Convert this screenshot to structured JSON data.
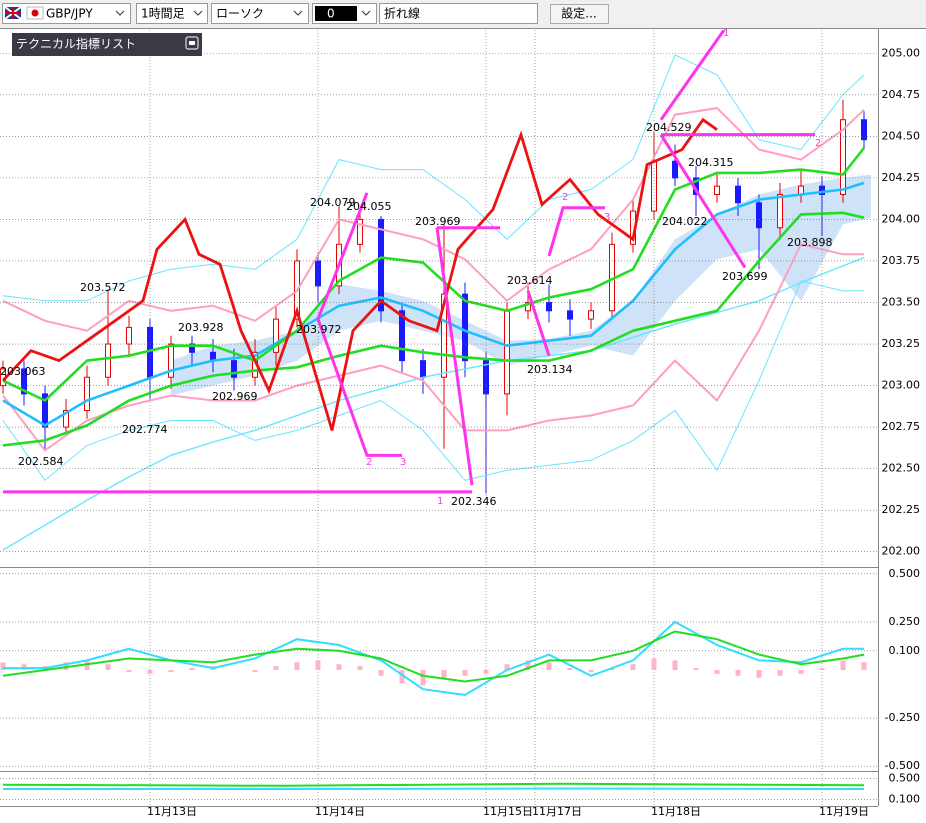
{
  "toolbar": {
    "pair": "GBP/JPY",
    "timeframe": "1時間足",
    "chart_type": "ローソク",
    "box": "0",
    "line_type": "折れ線",
    "settings": "設定..."
  },
  "indicator_list": {
    "title": "テクニカル指標リスト"
  },
  "chart_data": [
    {
      "type": "candlestick",
      "xlim": [
        -0.43,
        125
      ],
      "ylim": [
        201.92,
        205.14
      ],
      "xticks": [
        {
          "value": 21,
          "label": "11月13日"
        },
        {
          "value": 45,
          "label": "11月14日"
        },
        {
          "value": 69,
          "label": "11月15日"
        },
        {
          "value": 76,
          "label": "11月17日"
        },
        {
          "value": 93,
          "label": "11月18日"
        },
        {
          "value": 117,
          "label": "11月19日"
        }
      ],
      "yticks": [
        {
          "value": 205,
          "label": "205.00"
        },
        {
          "value": 204.75,
          "label": "204.75"
        },
        {
          "value": 204.5,
          "label": "204.50"
        },
        {
          "value": 204.25,
          "label": "204.25"
        },
        {
          "value": 204,
          "label": "204.00"
        },
        {
          "value": 203.75,
          "label": "203.75"
        },
        {
          "value": 203.5,
          "label": "203.50"
        },
        {
          "value": 203.25,
          "label": "203.25"
        },
        {
          "value": 203,
          "label": "203.00"
        },
        {
          "value": 202.75,
          "label": "202.75"
        },
        {
          "value": 202.5,
          "label": "202.50"
        },
        {
          "value": 202.25,
          "label": "202.25"
        },
        {
          "value": 202,
          "label": "202.00"
        }
      ],
      "grid": true,
      "up_color": "#e60000",
      "down_color": "#1a1aff",
      "cloud": {
        "color": "#cfe3f8",
        "x": [
          24,
          30,
          36,
          42,
          48,
          54,
          60,
          66,
          72,
          78,
          84,
          90,
          96,
          102,
          108,
          114,
          120,
          124
        ],
        "upper": [
          203.15,
          203.24,
          203.27,
          203.33,
          203.61,
          203.57,
          203.51,
          203.39,
          203.27,
          203.28,
          203.33,
          203.51,
          203.88,
          204.03,
          204.15,
          204.21,
          204.25,
          204.27
        ],
        "lower": [
          202.94,
          203.0,
          203.06,
          203.15,
          203.33,
          203.39,
          203.33,
          203.27,
          203.12,
          203.18,
          203.24,
          203.18,
          203.51,
          203.76,
          203.82,
          203.51,
          203.97,
          204.01
        ]
      },
      "candles": {
        "x": [
          0,
          3,
          6,
          9,
          12,
          15,
          18,
          21,
          24,
          27,
          30,
          33,
          36,
          39,
          42,
          45,
          48,
          51,
          54,
          57,
          60,
          63,
          66,
          69,
          72,
          75,
          78,
          81,
          84,
          87,
          90,
          93,
          96,
          99,
          102,
          105,
          108,
          111,
          114,
          117,
          120,
          123
        ],
        "open": [
          203.0,
          203.1,
          202.95,
          202.75,
          202.85,
          203.05,
          203.25,
          203.35,
          203.05,
          203.25,
          203.2,
          203.15,
          203.05,
          203.2,
          203.4,
          203.75,
          203.6,
          203.85,
          204.0,
          203.45,
          203.15,
          203.05,
          203.55,
          203.15,
          202.95,
          203.45,
          203.5,
          203.45,
          203.4,
          203.45,
          203.85,
          204.05,
          204.35,
          204.25,
          204.15,
          204.2,
          204.1,
          203.95,
          204.15,
          204.2,
          204.15,
          204.6
        ],
        "high": [
          203.15,
          203.15,
          203.0,
          202.92,
          203.12,
          203.58,
          203.42,
          203.4,
          203.3,
          203.3,
          203.28,
          203.22,
          203.28,
          203.48,
          203.82,
          203.8,
          204.08,
          204.06,
          204.02,
          203.5,
          203.22,
          203.97,
          203.62,
          203.2,
          203.5,
          203.62,
          203.61,
          203.52,
          203.5,
          203.92,
          204.12,
          204.53,
          204.45,
          204.32,
          204.28,
          204.25,
          204.15,
          204.22,
          204.3,
          204.26,
          204.72,
          204.65
        ],
        "low": [
          202.95,
          202.88,
          202.62,
          202.7,
          202.8,
          203.0,
          203.18,
          202.92,
          202.98,
          203.12,
          203.08,
          202.97,
          203.0,
          203.12,
          203.35,
          203.5,
          203.55,
          203.8,
          203.38,
          203.08,
          202.95,
          202.62,
          203.05,
          202.35,
          202.82,
          203.4,
          203.38,
          203.3,
          203.34,
          203.4,
          203.8,
          204.0,
          204.2,
          204.02,
          204.1,
          204.02,
          203.7,
          203.88,
          204.1,
          203.9,
          204.1,
          204.42
        ],
        "close": [
          203.1,
          202.95,
          202.75,
          202.85,
          203.05,
          203.25,
          203.35,
          203.05,
          203.25,
          203.2,
          203.15,
          203.05,
          203.2,
          203.4,
          203.75,
          203.6,
          203.85,
          204.0,
          203.45,
          203.15,
          203.05,
          203.55,
          203.15,
          202.95,
          203.45,
          203.5,
          203.45,
          203.4,
          203.45,
          203.85,
          204.05,
          204.35,
          204.25,
          204.15,
          204.2,
          204.1,
          203.95,
          204.15,
          204.2,
          204.15,
          204.6,
          204.48
        ]
      },
      "line_x": [
        0,
        6,
        12,
        18,
        24,
        30,
        36,
        42,
        48,
        54,
        60,
        66,
        72,
        78,
        84,
        90,
        96,
        102,
        108,
        114,
        120,
        123
      ],
      "series": [
        {
          "color": "#66e6ff",
          "values": [
            203.54,
            203.51,
            203.51,
            203.63,
            203.7,
            203.73,
            203.7,
            203.88,
            204.36,
            204.3,
            204.3,
            204.12,
            203.88,
            204.12,
            204.18,
            204.36,
            204.99,
            204.87,
            204.48,
            204.42,
            204.75,
            204.87
          ]
        },
        {
          "color": "#66e6ff",
          "values": [
            202.79,
            202.43,
            202.64,
            202.73,
            202.79,
            202.79,
            202.67,
            202.73,
            202.82,
            202.91,
            202.73,
            202.43,
            202.49,
            202.52,
            202.55,
            202.67,
            202.85,
            202.49,
            203.03,
            203.63,
            203.57,
            203.57
          ]
        },
        {
          "color": "#66e6ff",
          "values": [
            202.01,
            202.16,
            202.31,
            202.45,
            202.58,
            202.66,
            202.73,
            202.82,
            202.91,
            202.98,
            203.05,
            203.1,
            203.15,
            203.18,
            203.21,
            203.29,
            203.37,
            203.44,
            203.51,
            203.62,
            203.72,
            203.77
          ]
        },
        {
          "color": "#ff9ec4",
          "values": [
            203.51,
            203.39,
            203.33,
            203.51,
            203.45,
            203.48,
            203.39,
            203.57,
            204.0,
            203.94,
            203.88,
            203.76,
            203.51,
            203.7,
            203.82,
            204.12,
            204.63,
            204.67,
            204.42,
            204.36,
            204.54,
            204.66
          ]
        },
        {
          "color": "#ff9ec4",
          "values": [
            202.94,
            202.61,
            202.79,
            202.88,
            202.94,
            202.91,
            202.91,
            203.0,
            203.06,
            203.12,
            203.03,
            202.73,
            202.73,
            202.79,
            202.82,
            202.88,
            203.15,
            202.91,
            203.33,
            203.85,
            203.79,
            203.79
          ]
        },
        {
          "color": "#22dd22",
          "values": [
            202.64,
            202.67,
            202.76,
            202.91,
            203.0,
            203.06,
            203.09,
            203.11,
            203.18,
            203.24,
            203.2,
            203.17,
            203.15,
            203.15,
            203.21,
            203.33,
            203.39,
            203.45,
            203.75,
            204.03,
            204.04,
            204.01
          ]
        },
        {
          "color": "#1fbfff",
          "values": [
            202.91,
            202.76,
            202.91,
            203.0,
            203.09,
            203.15,
            203.18,
            203.33,
            203.48,
            203.53,
            203.45,
            203.33,
            203.24,
            203.27,
            203.3,
            203.51,
            203.82,
            204.03,
            204.12,
            204.15,
            204.18,
            204.22
          ]
        },
        {
          "color": "#22dd22",
          "values": [
            203.03,
            202.91,
            203.15,
            203.18,
            203.24,
            203.24,
            203.15,
            203.33,
            203.63,
            203.77,
            203.74,
            203.51,
            203.45,
            203.53,
            203.58,
            203.7,
            204.18,
            204.28,
            204.28,
            204.3,
            204.27,
            204.43
          ]
        },
        {
          "color": "#ee1111",
          "x": [
            0,
            4,
            8,
            12,
            16,
            20,
            22,
            26,
            28,
            31,
            34,
            38,
            42,
            47,
            50,
            54,
            58,
            62,
            65,
            70,
            74,
            77,
            81,
            85,
            90,
            92,
            97,
            100,
            102
          ],
          "values": [
            203.03,
            203.21,
            203.15,
            203.27,
            203.39,
            203.51,
            203.82,
            204.0,
            203.79,
            203.73,
            203.33,
            202.97,
            203.45,
            202.73,
            203.33,
            203.51,
            203.39,
            203.33,
            203.82,
            204.06,
            204.51,
            204.09,
            204.24,
            204.03,
            203.88,
            204.33,
            204.42,
            204.6,
            204.54
          ]
        }
      ],
      "zigzag": {
        "color": "#ff33ee",
        "segments": [
          {
            "x": [
              0,
              67
            ],
            "values": [
              202.36,
              202.36
            ]
          },
          {
            "x": [
              45,
              52
            ],
            "values": [
              203.4,
              204.16
            ]
          },
          {
            "x": [
              45,
              52,
              57
            ],
            "values": [
              203.4,
              202.58,
              202.58
            ]
          },
          {
            "x": [
              62,
              71
            ],
            "values": [
              203.95,
              203.95
            ]
          },
          {
            "x": [
              62,
              67
            ],
            "values": [
              203.95,
              202.4
            ]
          },
          {
            "x": [
              75,
              78
            ],
            "values": [
              203.57,
              203.18
            ]
          },
          {
            "x": [
              78,
              80,
              86
            ],
            "values": [
              203.78,
              204.07,
              204.07
            ]
          },
          {
            "x": [
              94,
              103
            ],
            "values": [
              204.6,
              205.14
            ]
          },
          {
            "x": [
              94,
              116
            ],
            "values": [
              204.51,
              204.51
            ]
          },
          {
            "x": [
              94,
              106
            ],
            "values": [
              204.51,
              203.71
            ]
          }
        ]
      },
      "annotations": [
        "203.063",
        "202.584",
        "203.572",
        "202.774",
        "203.928",
        "202.969",
        "204.079",
        "204.055",
        "203.972",
        "203.969",
        "202.346",
        "203.614",
        "203.134",
        "204.529",
        "204.315",
        "204.022",
        "203.699",
        "203.898",
        "1",
        "2",
        "3",
        "2",
        "3",
        "1",
        "2"
      ]
    },
    {
      "type": "macd",
      "ylim": [
        -0.52,
        0.52
      ],
      "yticks": [
        {
          "value": 0.5,
          "label": "0.500"
        },
        {
          "value": 0.25,
          "label": "0.250"
        },
        {
          "value": 0.1,
          "label": "0.100"
        },
        {
          "value": -0.25,
          "label": "-0.250"
        },
        {
          "value": -0.5,
          "label": "-0.500"
        }
      ],
      "line_x": [
        0,
        6,
        12,
        18,
        24,
        30,
        36,
        42,
        48,
        54,
        60,
        66,
        72,
        78,
        84,
        90,
        96,
        102,
        108,
        114,
        120,
        123
      ],
      "series": [
        {
          "color": "#33ddff",
          "values": [
            0.01,
            0.01,
            0.05,
            0.11,
            0.05,
            0.01,
            0.06,
            0.16,
            0.13,
            0.05,
            -0.1,
            -0.13,
            0.0,
            0.08,
            -0.03,
            0.05,
            0.25,
            0.13,
            0.05,
            0.04,
            0.11,
            0.11
          ]
        },
        {
          "color": "#22dd22",
          "values": [
            -0.03,
            0.0,
            0.03,
            0.06,
            0.05,
            0.04,
            0.08,
            0.11,
            0.1,
            0.06,
            -0.03,
            -0.06,
            -0.03,
            0.05,
            0.05,
            0.1,
            0.2,
            0.16,
            0.08,
            0.03,
            0.06,
            0.08
          ]
        }
      ],
      "histogram": {
        "color": "#ffb3c6",
        "x": [
          0,
          3,
          6,
          9,
          12,
          15,
          18,
          21,
          24,
          27,
          30,
          33,
          36,
          39,
          42,
          45,
          48,
          51,
          54,
          57,
          60,
          63,
          66,
          69,
          72,
          75,
          78,
          81,
          84,
          87,
          90,
          93,
          96,
          99,
          102,
          105,
          108,
          111,
          114,
          117,
          120,
          123
        ],
        "values": [
          0.04,
          0.03,
          0.02,
          0.04,
          0.05,
          0.03,
          -0.01,
          -0.02,
          -0.01,
          0.01,
          0.02,
          0.0,
          -0.01,
          0.02,
          0.04,
          0.05,
          0.03,
          0.02,
          -0.03,
          -0.07,
          -0.08,
          -0.05,
          -0.03,
          -0.02,
          0.03,
          0.05,
          0.04,
          0.01,
          -0.01,
          0.01,
          0.03,
          0.06,
          0.05,
          0.01,
          -0.02,
          -0.03,
          -0.04,
          -0.03,
          -0.02,
          0.01,
          0.05,
          0.04
        ]
      }
    },
    {
      "type": "oscillator",
      "ylim": [
        0,
        0.6
      ],
      "yticks": [
        {
          "value": 0.5,
          "label": "0.500"
        },
        {
          "value": 0.1,
          "label": "0.100"
        }
      ],
      "line_x": [
        0,
        40,
        80,
        123
      ],
      "series": [
        {
          "color": "#22dd22",
          "values": [
            0.38,
            0.36,
            0.4,
            0.37
          ]
        },
        {
          "color": "#33ddff",
          "values": [
            0.3,
            0.3,
            0.31,
            0.3
          ]
        }
      ]
    }
  ]
}
